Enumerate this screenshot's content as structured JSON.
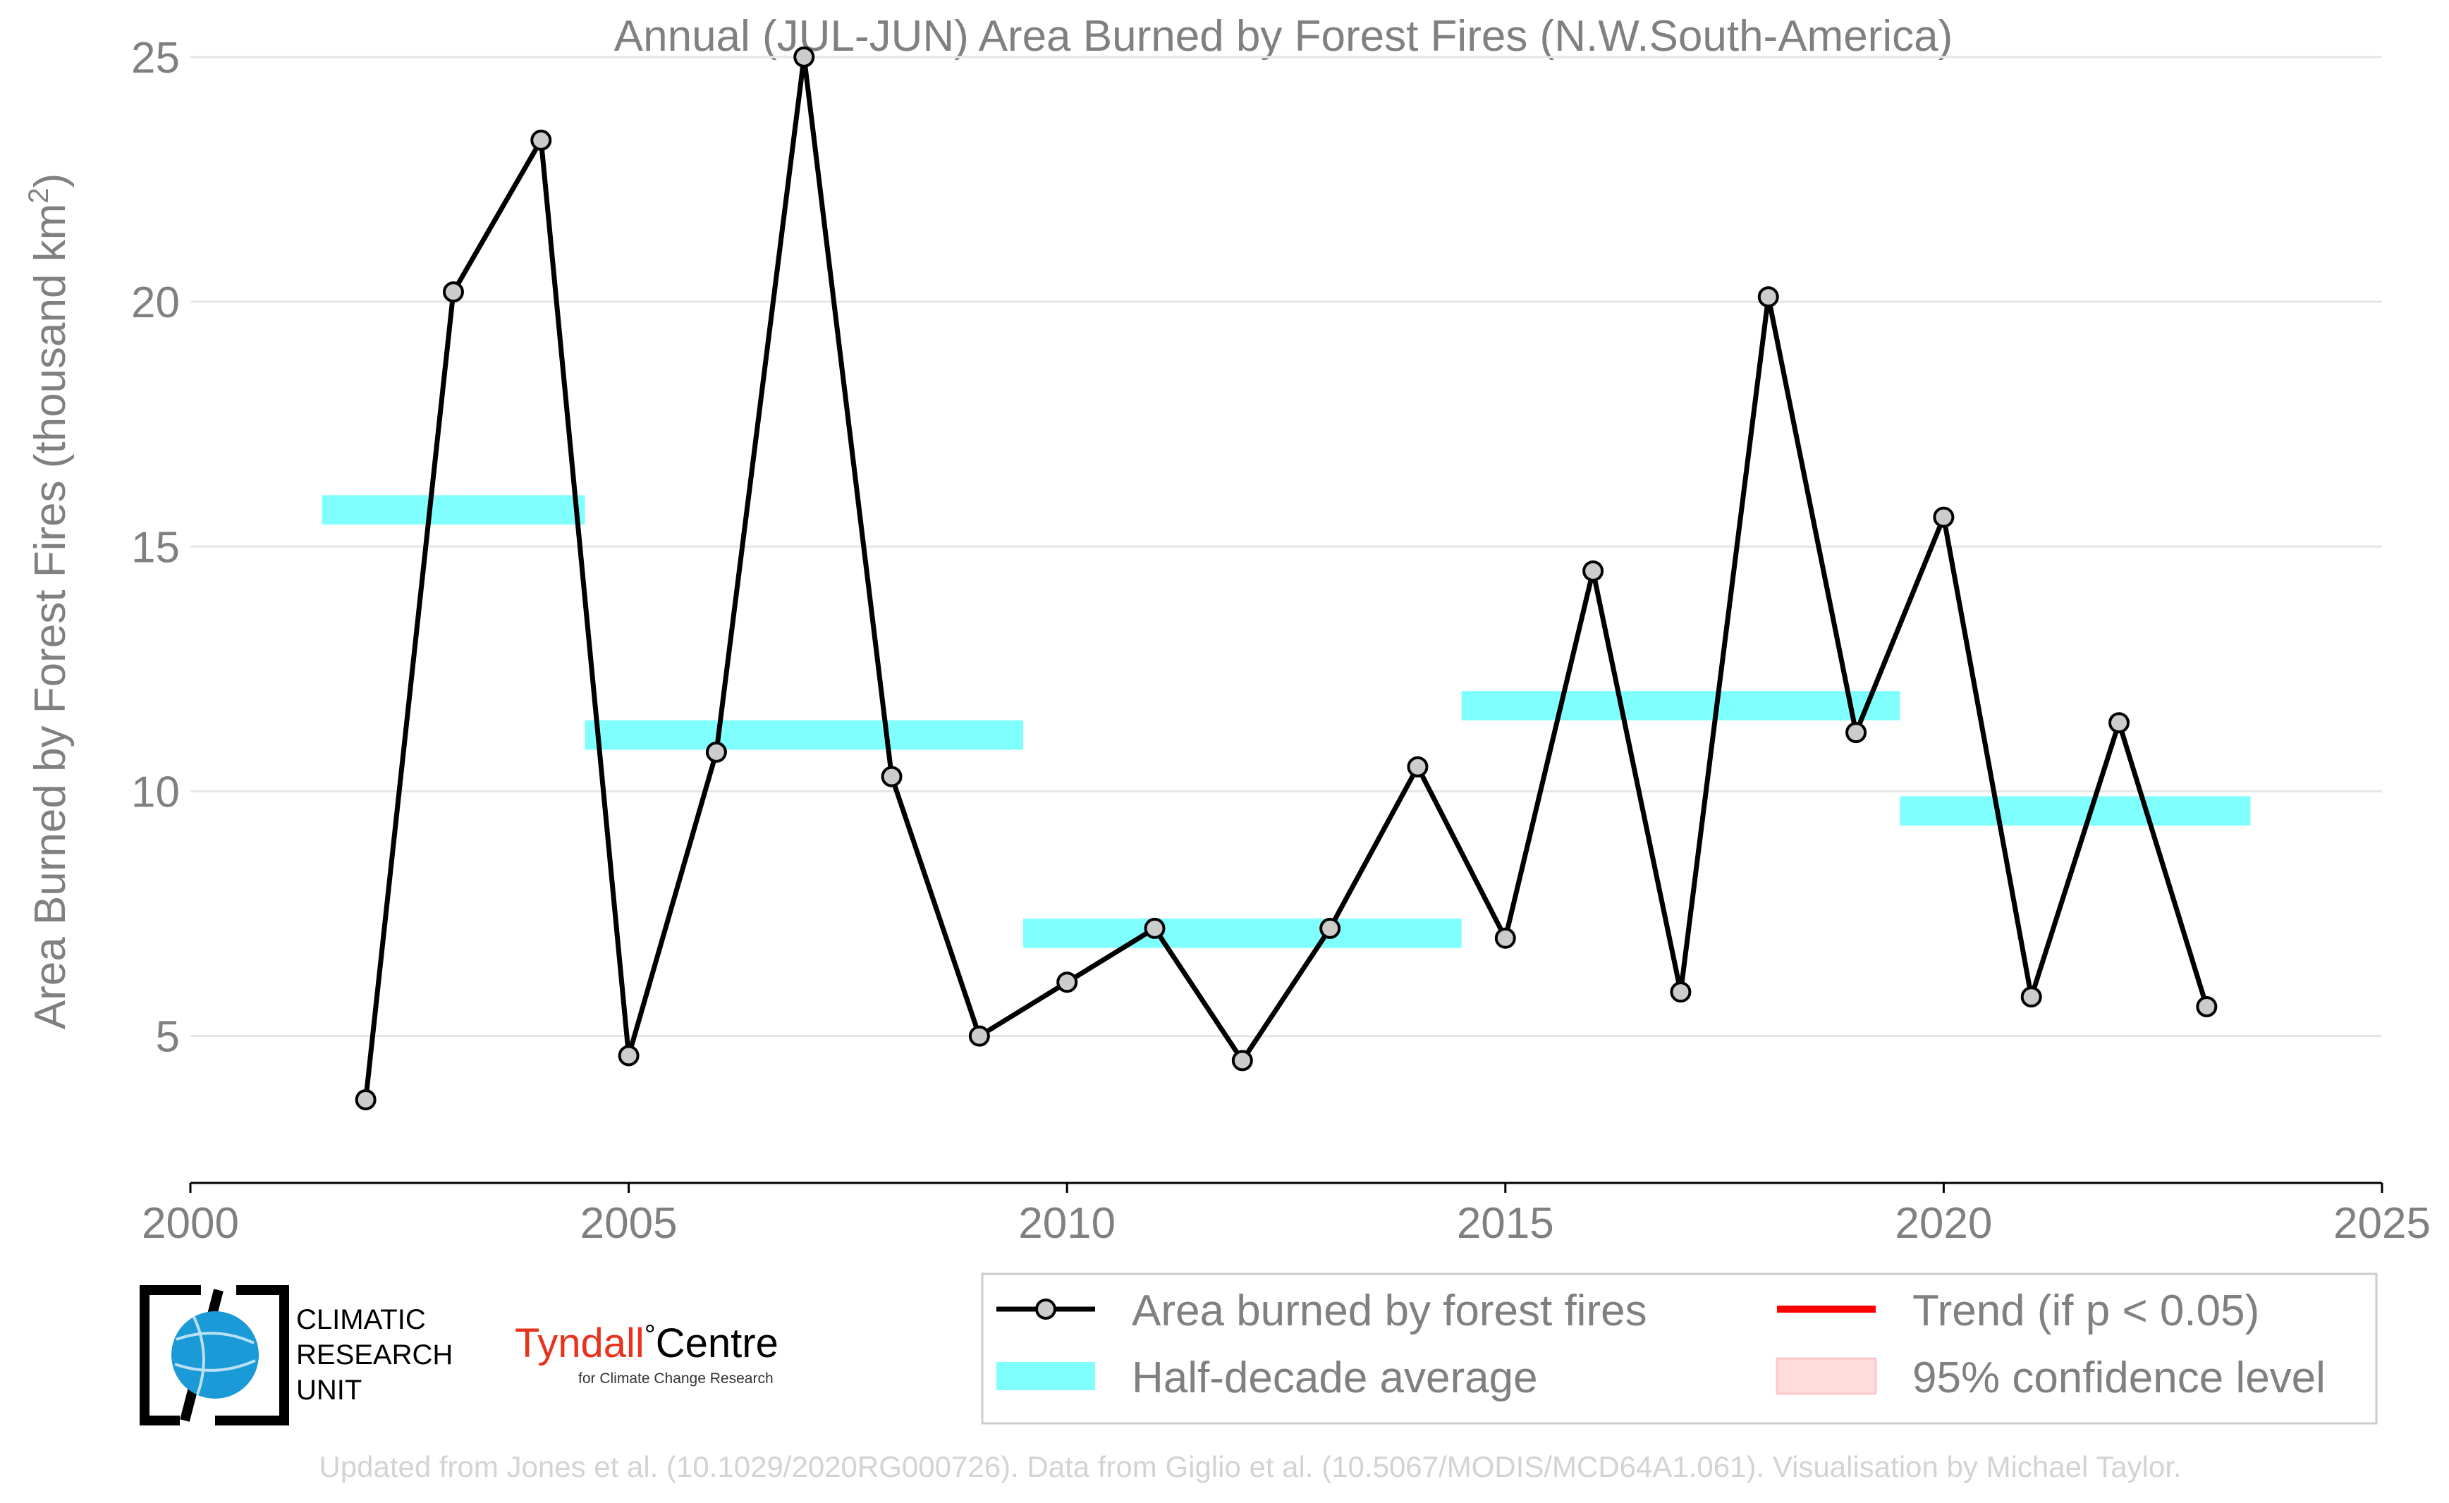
{
  "chart_data": {
    "type": "line",
    "title": "Annual (JUL-JUN) Area Burned by Forest Fires (N.W.South-America)",
    "ylabel": "Area Burned by Forest Fires (thousand km",
    "ylabel_sup": "2",
    "ylabel_close": ")",
    "xlim": [
      2000,
      2025
    ],
    "ylim": [
      2,
      25.3
    ],
    "x_ticks": [
      2000,
      2005,
      2010,
      2015,
      2020,
      2025
    ],
    "y_ticks": [
      5,
      10,
      15,
      20,
      25
    ],
    "grid": "horizontal",
    "legend_position": "bottom-right",
    "colors": {
      "line": "#000000",
      "marker_fill": "#cccccc",
      "half_decade": "#80ffff",
      "trend": "#ff0000",
      "confidence": "#ffdddd",
      "text": "#808080",
      "grid": "#e6e6e6"
    },
    "series": [
      {
        "name": "Area burned by forest fires",
        "x": [
          2002,
          2003,
          2004,
          2005,
          2006,
          2007,
          2008,
          2009,
          2010,
          2011,
          2012,
          2013,
          2014,
          2015,
          2016,
          2017,
          2018,
          2019,
          2020,
          2021,
          2022,
          2023
        ],
        "y": [
          3.7,
          20.2,
          23.3,
          4.6,
          10.8,
          25.0,
          10.3,
          5.0,
          6.1,
          7.2,
          4.5,
          7.2,
          10.5,
          7.0,
          14.5,
          5.9,
          20.1,
          11.2,
          15.6,
          5.8,
          11.4,
          5.6
        ]
      }
    ],
    "half_decade_averages": [
      {
        "x_start": 2001.5,
        "x_end": 2004.5,
        "y": 15.75
      },
      {
        "x_start": 2004.5,
        "x_end": 2009.5,
        "y": 11.15
      },
      {
        "x_start": 2009.5,
        "x_end": 2014.5,
        "y": 7.1
      },
      {
        "x_start": 2014.5,
        "x_end": 2019.5,
        "y": 11.75
      },
      {
        "x_start": 2019.5,
        "x_end": 2023.5,
        "y": 9.6
      }
    ],
    "legend": [
      {
        "label": "Area burned by forest fires",
        "symbol": "line-marker"
      },
      {
        "label": "Trend (if p < 0.05)",
        "symbol": "red-line"
      },
      {
        "label": "Half-decade average",
        "symbol": "cyan-band"
      },
      {
        "label": "95% confidence level",
        "symbol": "pink-patch"
      }
    ]
  },
  "logos": {
    "cru_line1": "CLIMATIC",
    "cru_line2": "RESEARCH",
    "cru_line3": "UNIT",
    "tyndall_name": "Tyndall",
    "tyndall_degree": "°",
    "tyndall_centre": "Centre",
    "tyndall_sub": "for Climate Change Research",
    "tyndall_color": "#e8321e",
    "cru_globe_color": "#1a9ad6"
  },
  "footer": {
    "credit": "Updated from Jones et al. (10.1029/2020RG000726). Data from Giglio et al. (10.5067/MODIS/MCD64A1.061). Visualisation by Michael Taylor."
  }
}
